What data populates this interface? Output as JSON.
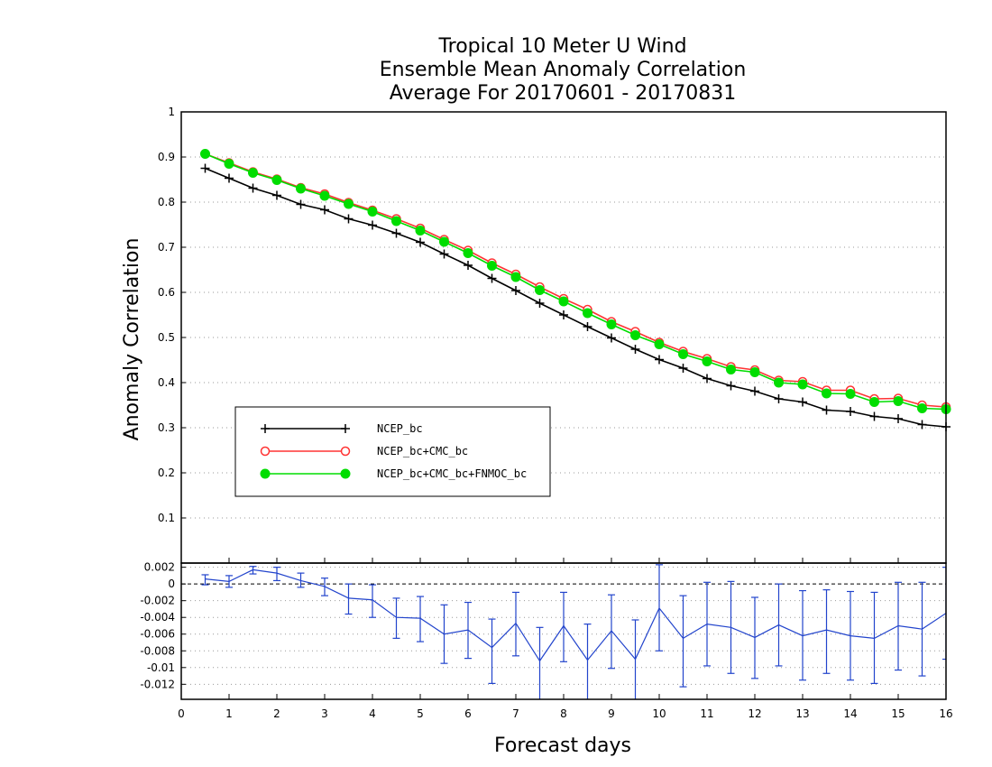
{
  "chart_data": [
    {
      "type": "line",
      "title": [
        "Tropical 10 Meter U Wind",
        "Ensemble Mean Anomaly Correlation",
        "Average For 20170601 - 20170831"
      ],
      "xlabel": "Forecast days",
      "ylabel": "Anomaly Correlation",
      "xlim": [
        0,
        16
      ],
      "ylim": [
        0,
        1
      ],
      "xticks": [
        "0",
        "1",
        "2",
        "3",
        "4",
        "5",
        "6",
        "7",
        "8",
        "9",
        "10",
        "11",
        "12",
        "13",
        "14",
        "15",
        "16"
      ],
      "yticks": [
        {
          "v": 0.1,
          "label": "0.1"
        },
        {
          "v": 0.2,
          "label": "0.2"
        },
        {
          "v": 0.3,
          "label": "0.3"
        },
        {
          "v": 0.4,
          "label": "0.4"
        },
        {
          "v": 0.5,
          "label": "0.5"
        },
        {
          "v": 0.6,
          "label": "0.6"
        },
        {
          "v": 0.7,
          "label": "0.7"
        },
        {
          "v": 0.8,
          "label": "0.8"
        },
        {
          "v": 0.9,
          "label": "0.9"
        },
        {
          "v": 1.0,
          "label": "1"
        }
      ],
      "grid": true,
      "legend_position": "lower-left",
      "x": [
        0.5,
        1,
        1.5,
        2,
        2.5,
        3,
        3.5,
        4,
        4.5,
        5,
        5.5,
        6,
        6.5,
        7,
        7.5,
        8,
        8.5,
        9,
        9.5,
        10,
        10.5,
        11,
        11.5,
        12,
        12.5,
        13,
        13.5,
        14,
        14.5,
        15,
        15.5,
        16
      ],
      "series": [
        {
          "name": "NCEP_bc",
          "color": "#000000",
          "marker": "plus",
          "values": [
            0.875,
            0.853,
            0.831,
            0.815,
            0.795,
            0.783,
            0.763,
            0.749,
            0.731,
            0.711,
            0.685,
            0.66,
            0.631,
            0.604,
            0.576,
            0.55,
            0.524,
            0.499,
            0.474,
            0.451,
            0.432,
            0.409,
            0.393,
            0.381,
            0.364,
            0.357,
            0.339,
            0.336,
            0.325,
            0.32,
            0.307,
            0.302
          ]
        },
        {
          "name": "NCEP_bc+CMC_bc",
          "color": "#ff3333",
          "marker": "open-circle",
          "values": [
            0.907,
            0.887,
            0.867,
            0.851,
            0.832,
            0.818,
            0.799,
            0.782,
            0.763,
            0.742,
            0.717,
            0.693,
            0.665,
            0.64,
            0.612,
            0.586,
            0.562,
            0.535,
            0.513,
            0.489,
            0.469,
            0.453,
            0.435,
            0.428,
            0.405,
            0.402,
            0.383,
            0.383,
            0.364,
            0.365,
            0.35,
            0.346
          ]
        },
        {
          "name": "NCEP_bc+CMC_bc+FNMOC_bc",
          "color": "#00dd00",
          "marker": "filled-circle",
          "values": [
            0.907,
            0.885,
            0.865,
            0.849,
            0.83,
            0.814,
            0.796,
            0.779,
            0.758,
            0.737,
            0.712,
            0.687,
            0.659,
            0.634,
            0.605,
            0.58,
            0.554,
            0.529,
            0.505,
            0.485,
            0.463,
            0.447,
            0.429,
            0.423,
            0.4,
            0.396,
            0.376,
            0.375,
            0.357,
            0.359,
            0.343,
            0.341
          ]
        }
      ]
    },
    {
      "type": "line",
      "title": "",
      "xlabel": "Forecast days",
      "ylabel": "",
      "xlim": [
        0,
        16
      ],
      "ylim": [
        -0.0138,
        0.0025
      ],
      "yticks": [
        {
          "v": 0.002,
          "label": "0.002"
        },
        {
          "v": 0.0,
          "label": "0"
        },
        {
          "v": -0.002,
          "label": "-0.002"
        },
        {
          "v": -0.004,
          "label": "-0.004"
        },
        {
          "v": -0.006,
          "label": "-0.006"
        },
        {
          "v": -0.008,
          "label": "-0.008"
        },
        {
          "v": -0.01,
          "label": "-0.01"
        },
        {
          "v": -0.012,
          "label": "-0.012"
        }
      ],
      "grid": true,
      "x": [
        0.5,
        1,
        1.5,
        2,
        2.5,
        3,
        3.5,
        4,
        4.5,
        5,
        5.5,
        6,
        6.5,
        7,
        7.5,
        8,
        8.5,
        9,
        9.5,
        10,
        10.5,
        11,
        11.5,
        12,
        12.5,
        13,
        13.5,
        14,
        14.5,
        15,
        15.5,
        16
      ],
      "series": [
        {
          "name": "",
          "color": "#2244cc",
          "marker": "error-bar",
          "values": [
            0.0006,
            0.0003,
            0.0017,
            0.0013,
            0.0004,
            -0.0003,
            -0.0017,
            -0.0019,
            -0.004,
            -0.0041,
            -0.006,
            -0.0055,
            -0.0076,
            -0.0047,
            -0.0092,
            -0.005,
            -0.0091,
            -0.0056,
            -0.009,
            -0.0029,
            -0.0065,
            -0.0048,
            -0.0052,
            -0.0064,
            -0.0049,
            -0.0062,
            -0.0055,
            -0.0062,
            -0.0065,
            -0.005,
            -0.0054,
            -0.0035
          ],
          "error_low": [
            -0.0001,
            -0.0004,
            0.0012,
            0.0004,
            -0.0004,
            -0.0014,
            -0.0036,
            -0.004,
            -0.0065,
            -0.0069,
            -0.0095,
            -0.0089,
            -0.0119,
            -0.0086,
            -0.015,
            -0.0093,
            -0.015,
            -0.0101,
            -0.015,
            -0.008,
            -0.0123,
            -0.0098,
            -0.0107,
            -0.0113,
            -0.0098,
            -0.0115,
            -0.0107,
            -0.0115,
            -0.0119,
            -0.0103,
            -0.011,
            -0.009
          ],
          "error_high": [
            0.0011,
            0.001,
            0.0021,
            0.002,
            0.0013,
            0.0007,
            0.0,
            -0.0001,
            -0.0017,
            -0.0015,
            -0.0025,
            -0.0022,
            -0.0042,
            -0.001,
            -0.0052,
            -0.001,
            -0.0048,
            -0.0013,
            -0.0043,
            0.0023,
            -0.0014,
            0.0002,
            0.0003,
            -0.0016,
            0.0,
            -0.0008,
            -0.0007,
            -0.0009,
            -0.001,
            0.0002,
            0.0002,
            0.002
          ]
        }
      ]
    }
  ]
}
